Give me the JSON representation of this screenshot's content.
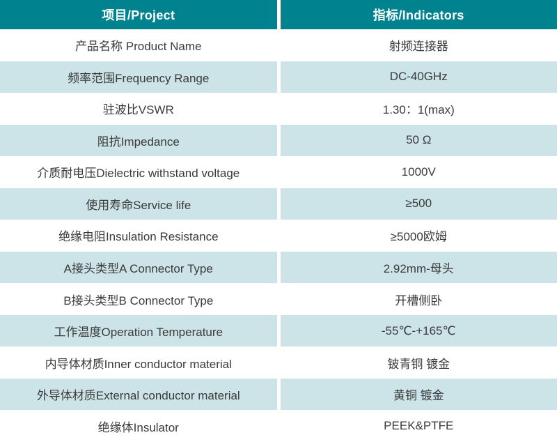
{
  "table": {
    "header": {
      "project": "项目/Project",
      "indicators": "指标/Indicators"
    },
    "rows": [
      {
        "project": "产品名称 Product Name",
        "indicator": "射频连接器"
      },
      {
        "project": "频率范围Frequency Range",
        "indicator": "DC-40GHz"
      },
      {
        "project": "驻波比VSWR",
        "indicator": "1.30：1(max)"
      },
      {
        "project": "阻抗Impedance",
        "indicator": "50 Ω"
      },
      {
        "project": "介质耐电压Dielectric withstand voltage",
        "indicator": "1000V"
      },
      {
        "project": "使用寿命Service life",
        "indicator": "≥500"
      },
      {
        "project": "绝缘电阻Insulation Resistance",
        "indicator": "≥5000欧姆"
      },
      {
        "project": "A接头类型A Connector Type",
        "indicator": "2.92mm-母头"
      },
      {
        "project": "B接头类型B Connector Type",
        "indicator": "开槽侧卧"
      },
      {
        "project": "工作温度Operation Temperature",
        "indicator": "-55℃-+165℃"
      },
      {
        "project": "内导体材质Inner conductor material",
        "indicator": "铍青铜 镀金"
      },
      {
        "project": "外导体材质External conductor material",
        "indicator": "黄铜 镀金"
      },
      {
        "project": "绝缘体Insulator",
        "indicator": "PEEK&PTFE"
      }
    ],
    "colors": {
      "header_bg": "#00838F",
      "header_text": "#FFFFFF",
      "row_bg": "#FFFFFF",
      "row_alt_bg": "#CCE4E8",
      "body_text": "#3A3A3A"
    }
  }
}
